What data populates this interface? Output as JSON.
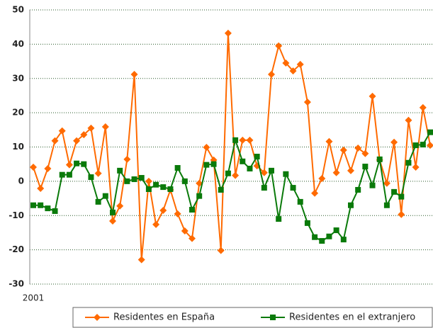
{
  "chart_data": {
    "type": "line",
    "categories": [
      "2001",
      null,
      null,
      null,
      null,
      null,
      null,
      null,
      null,
      null,
      null,
      null,
      null,
      null,
      null,
      null,
      null,
      null,
      null,
      null,
      null,
      null,
      null,
      null,
      null,
      null,
      null,
      null,
      null,
      null,
      null,
      null,
      null,
      null,
      null,
      null,
      null,
      null,
      null,
      null,
      null,
      null,
      null,
      null,
      null,
      null,
      null,
      null,
      null,
      null,
      null,
      null,
      null,
      null,
      null,
      null
    ],
    "series": [
      {
        "name": "Residentes en España",
        "color": "#ff6a00",
        "marker": "diamond",
        "values": [
          4.1,
          -2.1,
          3.7,
          11.8,
          14.7,
          4.8,
          11.8,
          13.6,
          15.5,
          2.3,
          15.9,
          -11.6,
          -7.2,
          6.4,
          31.2,
          -22.9,
          0,
          -12.6,
          -8.5,
          -2.5,
          -9.5,
          -14.5,
          -16.7,
          -0.6,
          9.9,
          6.2,
          -20.2,
          43.2,
          1.7,
          12,
          12,
          4.5,
          2.5,
          31.2,
          39.5,
          34.5,
          32.2,
          34.1,
          23.1,
          -3.5,
          0.8,
          11.6,
          2.5,
          9.1,
          3.1,
          9.7,
          8.1,
          24.8,
          6.2,
          -0.6,
          11.4,
          -9.7,
          17.8,
          4.1,
          21.5,
          10.5
        ]
      },
      {
        "name": "Residentes en el extranjero",
        "color": "#0a7a0a",
        "marker": "square",
        "values": [
          -7,
          -7,
          -7.9,
          -8.7,
          1.9,
          1.9,
          5.2,
          5,
          1.2,
          -6,
          -4.3,
          -9.1,
          3.1,
          0,
          0.6,
          1,
          -2.3,
          -1,
          -1.7,
          -2.3,
          3.9,
          0,
          -8.3,
          -4.3,
          4.8,
          5,
          -2.5,
          2.3,
          12,
          5.8,
          3.7,
          7.2,
          -1.9,
          3.1,
          -11,
          2.1,
          -1.9,
          -6,
          -12.2,
          -16.3,
          -17.4,
          -16.1,
          -14.3,
          -17,
          -7,
          -2.5,
          4.3,
          -1.2,
          6.4,
          -7,
          -3.1,
          -4.5,
          5.4,
          10.5,
          10.7,
          14.3
        ]
      }
    ],
    "ylim": [
      -30,
      50
    ],
    "yticks": [
      -30,
      -20,
      -10,
      0,
      10,
      20,
      30,
      40,
      50
    ],
    "grid": true,
    "legend": "bottom"
  }
}
